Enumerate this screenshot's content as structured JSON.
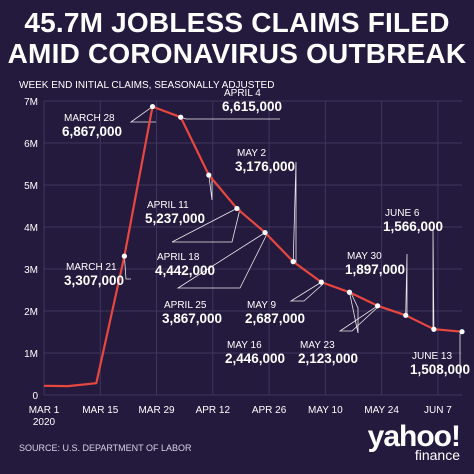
{
  "header": {
    "title_line1": "45.7M JOBLESS CLAIMS FILED",
    "title_line2": "AMID CORONAVIRUS OUTBREAK",
    "subtitle": "WEEK END INITIAL CLAIMS, SEASONALLY ADJUSTED"
  },
  "footer": {
    "source": "SOURCE:  U.S. DEPARTMENT OF LABOR",
    "logo_main": "yahoo!",
    "logo_sub": "finance"
  },
  "colors": {
    "background": "#241a3d",
    "line": "#e8473f",
    "grid": "#3f3560",
    "leader": "#ffffff"
  },
  "chart_data": {
    "type": "line",
    "ylim": [
      0,
      7000000
    ],
    "yticks": [
      {
        "value": 0,
        "label": "0"
      },
      {
        "value": 1000000,
        "label": "1M"
      },
      {
        "value": 2000000,
        "label": "2M"
      },
      {
        "value": 3000000,
        "label": "3M"
      },
      {
        "value": 4000000,
        "label": "4M"
      },
      {
        "value": 5000000,
        "label": "5M"
      },
      {
        "value": 6000000,
        "label": "6M"
      },
      {
        "value": 7000000,
        "label": "7M"
      }
    ],
    "xlim": [
      "2020-03-01",
      "2020-06-13"
    ],
    "xticks": [
      {
        "date": "2020-03-01",
        "label": "MAR 1",
        "label2": "2020"
      },
      {
        "date": "2020-03-15",
        "label": "MAR 15"
      },
      {
        "date": "2020-03-29",
        "label": "MAR 29"
      },
      {
        "date": "2020-04-12",
        "label": "APR 12"
      },
      {
        "date": "2020-04-26",
        "label": "APR 26"
      },
      {
        "date": "2020-05-10",
        "label": "MAY 10"
      },
      {
        "date": "2020-05-24",
        "label": "MAY 24"
      },
      {
        "date": "2020-06-07",
        "label": "JUN 7"
      }
    ],
    "grid": true,
    "series": [
      {
        "points": [
          {
            "x": "2020-03-01",
            "y": 220000
          },
          {
            "x": "2020-03-07",
            "y": 211000
          },
          {
            "x": "2020-03-14",
            "y": 282000
          },
          {
            "x": "2020-03-21",
            "y": 3307000
          },
          {
            "x": "2020-03-28",
            "y": 6867000
          },
          {
            "x": "2020-04-04",
            "y": 6615000
          },
          {
            "x": "2020-04-11",
            "y": 5237000
          },
          {
            "x": "2020-04-18",
            "y": 4442000
          },
          {
            "x": "2020-04-25",
            "y": 3867000
          },
          {
            "x": "2020-05-02",
            "y": 3176000
          },
          {
            "x": "2020-05-09",
            "y": 2687000
          },
          {
            "x": "2020-05-16",
            "y": 2446000
          },
          {
            "x": "2020-05-23",
            "y": 2123000
          },
          {
            "x": "2020-05-30",
            "y": 1897000
          },
          {
            "x": "2020-06-06",
            "y": 1566000
          },
          {
            "x": "2020-06-13",
            "y": 1508000
          }
        ]
      }
    ],
    "annotations": [
      {
        "point": 3,
        "date_label": "MARCH 21",
        "value_label": "3,307,000"
      },
      {
        "point": 4,
        "date_label": "MARCH 28",
        "value_label": "6,867,000"
      },
      {
        "point": 5,
        "date_label": "APRIL 4",
        "value_label": "6,615,000"
      },
      {
        "point": 6,
        "date_label": "APRIL 11",
        "value_label": "5,237,000"
      },
      {
        "point": 7,
        "date_label": "APRIL 18",
        "value_label": "4,442,000"
      },
      {
        "point": 8,
        "date_label": "APRIL 25",
        "value_label": "3,867,000"
      },
      {
        "point": 9,
        "date_label": "MAY 2",
        "value_label": "3,176,000"
      },
      {
        "point": 10,
        "date_label": "MAY 9",
        "value_label": "2,687,000"
      },
      {
        "point": 11,
        "date_label": "MAY 16",
        "value_label": "2,446,000"
      },
      {
        "point": 12,
        "date_label": "MAY 23",
        "value_label": "2,123,000"
      },
      {
        "point": 13,
        "date_label": "MAY 30",
        "value_label": "1,897,000"
      },
      {
        "point": 14,
        "date_label": "JUNE 6",
        "value_label": "1,566,000"
      },
      {
        "point": 15,
        "date_label": "JUNE 13",
        "value_label": "1,508,000"
      }
    ]
  }
}
